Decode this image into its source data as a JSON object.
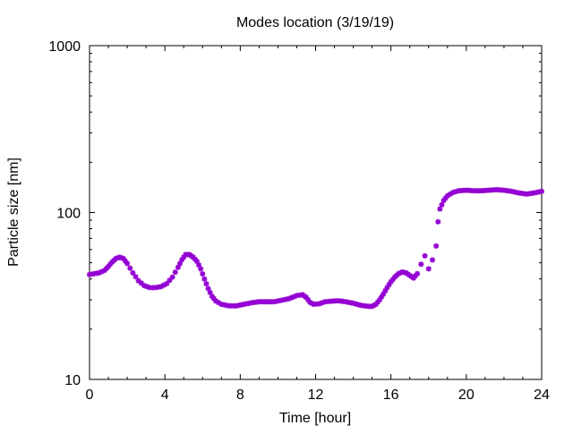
{
  "chart_data": {
    "type": "scatter",
    "title": "Modes location (3/19/19)",
    "xlabel": "Time [hour]",
    "ylabel": "Particle size [nm]",
    "xlim": [
      0,
      24
    ],
    "ylim": [
      10,
      1000
    ],
    "yscale": "log",
    "grid": false,
    "legend": "none",
    "xticks": [
      0,
      4,
      8,
      12,
      16,
      20,
      24
    ],
    "xtick_labels": [
      "0",
      "4",
      "8",
      "12",
      "16",
      "20",
      "24"
    ],
    "yticks": [
      10,
      100,
      1000
    ],
    "ytick_labels": [
      "10",
      "100",
      "1000"
    ],
    "marker_color": "#9400d3",
    "series": [
      {
        "x": [
          0.0,
          0.5,
          0.8,
          1.0,
          1.2,
          1.4,
          1.6,
          1.8,
          2.0,
          2.3,
          2.6,
          2.9,
          3.2,
          3.5,
          3.8,
          4.1,
          4.4,
          4.7,
          4.9,
          5.1,
          5.3,
          5.5,
          5.7,
          5.9,
          6.1,
          6.3,
          6.5,
          6.7,
          7.0,
          7.4,
          7.8,
          8.2,
          8.6,
          9.0,
          9.4,
          9.8,
          10.2,
          10.6,
          11.0,
          11.3,
          11.5,
          11.7,
          11.9,
          12.2,
          12.5,
          12.8,
          13.2,
          13.6,
          14.0,
          14.4,
          14.8,
          15.0,
          15.2,
          15.4,
          15.6,
          15.8,
          16.0,
          16.2,
          16.4,
          16.6,
          16.8,
          17.0,
          17.2,
          17.4,
          17.6,
          17.8,
          18.0,
          18.2,
          18.4,
          18.5,
          18.6,
          18.8,
          19.0,
          19.3,
          19.6,
          20.0,
          20.4,
          20.8,
          21.2,
          21.6,
          22.0,
          22.4,
          22.8,
          23.2,
          23.6,
          24.0
        ],
        "y": [
          42.5,
          43.5,
          45,
          47.5,
          50.5,
          53,
          54,
          53,
          49.5,
          43.5,
          39,
          36.5,
          35.5,
          35.5,
          36,
          37.5,
          41,
          47,
          52,
          56,
          56,
          54,
          51,
          46,
          40,
          35,
          31.5,
          29.5,
          28.2,
          27.6,
          27.6,
          28.2,
          28.8,
          29.2,
          29.2,
          29.2,
          29.8,
          30.5,
          31.8,
          32.2,
          31,
          29,
          28.2,
          28.4,
          29.2,
          29.4,
          29.6,
          29.2,
          28.6,
          27.8,
          27.4,
          27.4,
          28.2,
          30,
          32.5,
          35.5,
          38.5,
          41,
          43,
          44,
          43.5,
          42,
          40.5,
          43,
          49,
          55,
          46,
          52,
          63,
          88,
          105,
          118,
          126,
          132,
          135,
          136,
          135,
          135,
          136,
          137,
          136,
          134,
          131,
          129,
          131,
          134
        ]
      }
    ]
  }
}
